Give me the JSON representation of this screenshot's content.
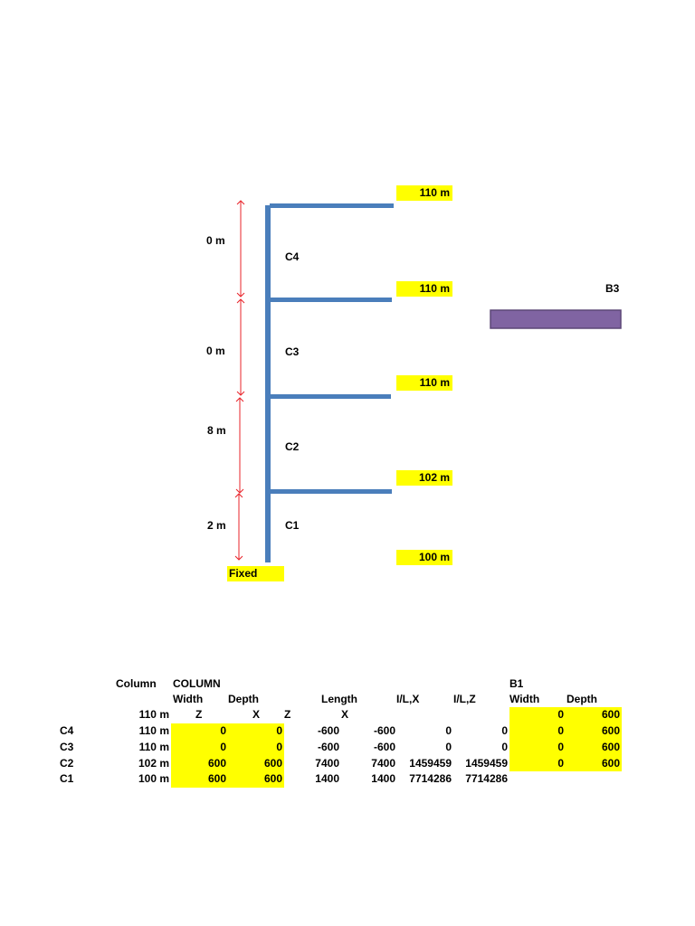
{
  "diagram": {
    "level_labels": [
      "110 m",
      "110 m",
      "110 m",
      "102 m",
      "100 m"
    ],
    "span_labels": [
      "0 m",
      "0 m",
      "8 m",
      "2 m"
    ],
    "column_labels": [
      "C4",
      "C3",
      "C2",
      "C1"
    ],
    "support_label": "Fixed",
    "beam_label": "B3",
    "colors": {
      "frame": "#4a7ebb",
      "arrow": "#e8232a",
      "beam": "#8064a2",
      "highlight": "#ffff00"
    }
  },
  "table": {
    "title_column": "Column",
    "title_group": "COLUMN",
    "headers_row1": [
      "Width",
      "Depth",
      "Length",
      "I/L,X",
      "I/L,Z"
    ],
    "headers_row2": [
      "Z",
      "X",
      "Z",
      "X"
    ],
    "top_level": "110 m",
    "rows": [
      {
        "name": "C4",
        "level": "110 m",
        "width": "0",
        "depth": "0",
        "len_z": "-600",
        "len_x": "-600",
        "ilx": "0",
        "ilz": "0"
      },
      {
        "name": "C3",
        "level": "110 m",
        "width": "0",
        "depth": "0",
        "len_z": "-600",
        "len_x": "-600",
        "ilx": "0",
        "ilz": "0"
      },
      {
        "name": "C2",
        "level": "102 m",
        "width": "600",
        "depth": "600",
        "len_z": "7400",
        "len_x": "7400",
        "ilx": "1459459",
        "ilz": "1459459"
      },
      {
        "name": "C1",
        "level": "100 m",
        "width": "600",
        "depth": "600",
        "len_z": "1400",
        "len_x": "1400",
        "ilx": "7714286",
        "ilz": "7714286"
      }
    ],
    "b1": {
      "title": "B1",
      "headers": [
        "Width",
        "Depth"
      ],
      "rows": [
        {
          "width": "0",
          "depth": "600"
        },
        {
          "width": "0",
          "depth": "600"
        },
        {
          "width": "0",
          "depth": "600"
        },
        {
          "width": "0",
          "depth": "600"
        }
      ]
    }
  }
}
